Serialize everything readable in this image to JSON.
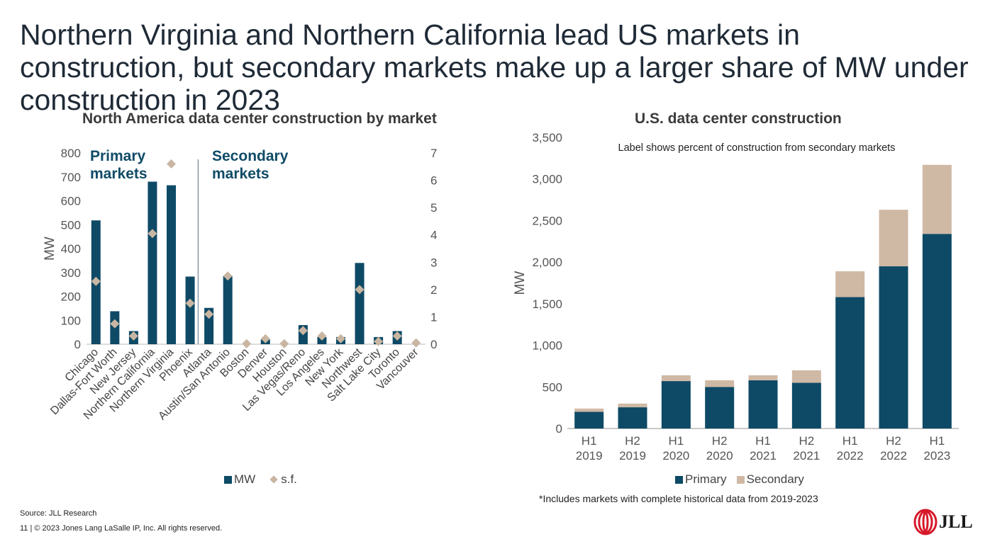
{
  "slide": {
    "title": "Northern Virginia and Northern California lead US markets in construction, but secondary markets make up a larger share of MW under construction in 2023",
    "source": "Source: JLL Research",
    "copyright": "11  |  © 2023 Jones Lang LaSalle IP, Inc. All rights reserved.",
    "footnote": "*Includes markets with complete historical data from 2019-2023",
    "logo_text": "JLL"
  },
  "colors": {
    "primary": "#0e4a66",
    "secondary": "#cfb9a5",
    "diamond": "#c9b6a2",
    "group_label": "#0f4b67"
  },
  "chart_data": [
    {
      "type": "bar",
      "title": "North America data center construction by market",
      "ylabel": "MW",
      "ylim": [
        0,
        800
      ],
      "y_ticks": [
        0,
        100,
        200,
        300,
        400,
        500,
        600,
        700,
        800
      ],
      "y2lim": [
        0,
        7
      ],
      "y2_ticks": [
        0,
        1,
        2,
        3,
        4,
        5,
        6,
        7
      ],
      "group_labels": {
        "primary": "Primary\nmarkets",
        "secondary": "Secondary\nmarkets"
      },
      "categories": [
        "Chicago",
        "Dallas-Fort Worth",
        "New Jersey",
        "Northern California",
        "Northern Virginia",
        "Phoenix",
        "Atlanta",
        "Austin/San Antonio",
        "Boston",
        "Denver",
        "Houston",
        "Las Vegas/Reno",
        "Los Angeles",
        "New York",
        "Northwest",
        "Salt Lake City",
        "Toronto",
        "Vancouver"
      ],
      "series": [
        {
          "name": "MW",
          "axis": "left",
          "values": [
            518,
            138,
            55,
            680,
            665,
            283,
            152,
            285,
            0,
            20,
            0,
            80,
            30,
            30,
            340,
            30,
            55,
            0
          ]
        },
        {
          "name": "s.f.",
          "axis": "right",
          "values": [
            2.3,
            0.75,
            0.3,
            4.05,
            6.6,
            1.5,
            1.1,
            2.5,
            0.02,
            0.2,
            0.02,
            0.5,
            0.3,
            0.2,
            2.0,
            0.1,
            0.3,
            0.05
          ]
        }
      ],
      "legend": [
        "MW",
        "s.f."
      ],
      "legend_position": "bottom"
    },
    {
      "type": "bar",
      "stacked": true,
      "title": "U.S. data center construction",
      "subtitle": "Label shows percent of construction from secondary markets",
      "ylabel": "MW",
      "ylim": [
        0,
        3500
      ],
      "y_ticks": [
        "0",
        "500",
        "1,000",
        "1,500",
        "2,000",
        "2,500",
        "3,000",
        "3,500"
      ],
      "categories": [
        [
          "H1",
          "2019"
        ],
        [
          "H2",
          "2019"
        ],
        [
          "H1",
          "2020"
        ],
        [
          "H2",
          "2020"
        ],
        [
          "H1",
          "2021"
        ],
        [
          "H2",
          "2021"
        ],
        [
          "H1",
          "2022"
        ],
        [
          "H2",
          "2022"
        ],
        [
          "H1",
          "2023"
        ]
      ],
      "series": [
        {
          "name": "Primary",
          "values": [
            200,
            255,
            570,
            500,
            580,
            550,
            1580,
            1950,
            2340
          ]
        },
        {
          "name": "Secondary",
          "values": [
            40,
            45,
            70,
            80,
            60,
            150,
            310,
            680,
            830
          ]
        }
      ],
      "legend": [
        "Primary",
        "Secondary"
      ],
      "legend_position": "bottom"
    }
  ]
}
